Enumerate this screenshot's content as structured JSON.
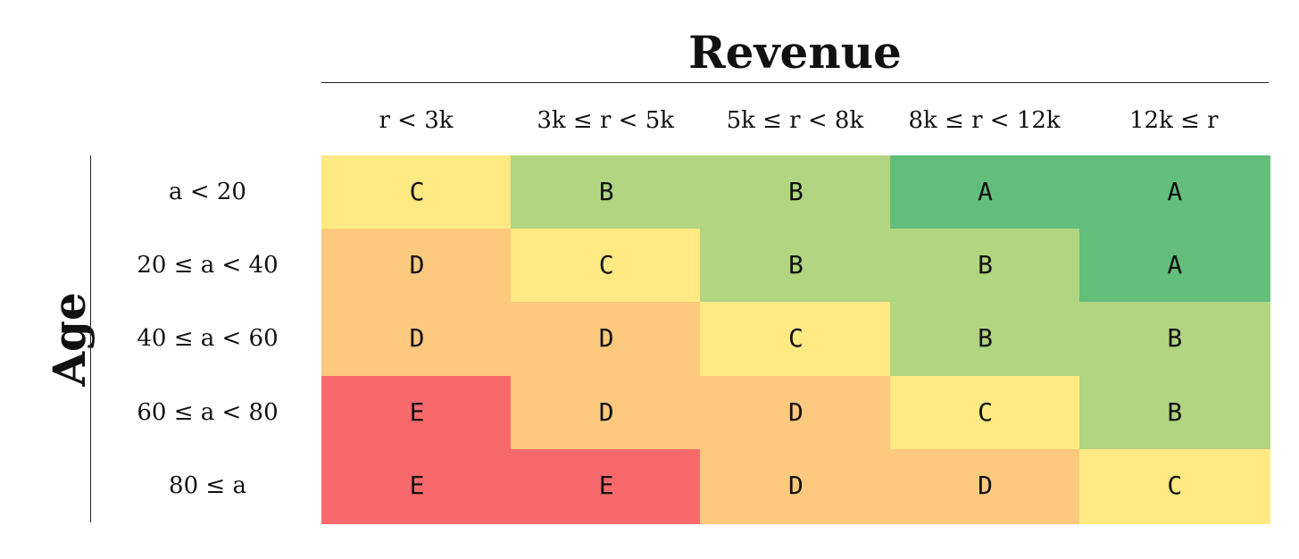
{
  "column_axis": {
    "title": "Revenue",
    "headers": [
      "r < 3k",
      "3k ≤ r < 5k",
      "5k ≤ r < 8k",
      "8k ≤ r < 12k",
      "12k ≤ r"
    ]
  },
  "row_axis": {
    "title": "Age",
    "headers": [
      "a < 20",
      "20 ≤ a < 40",
      "40 ≤ a < 60",
      "60 ≤ a < 80",
      "80 ≤ a"
    ]
  },
  "grades": [
    [
      "C",
      "B",
      "B",
      "A",
      "A"
    ],
    [
      "D",
      "C",
      "B",
      "B",
      "A"
    ],
    [
      "D",
      "D",
      "C",
      "B",
      "B"
    ],
    [
      "E",
      "D",
      "D",
      "C",
      "B"
    ],
    [
      "E",
      "E",
      "D",
      "D",
      "C"
    ]
  ],
  "grade_colors": {
    "A": "#63be7b",
    "B": "#b1d580",
    "C": "#fee983",
    "D": "#fdc97e",
    "E": "#f8696b"
  }
}
